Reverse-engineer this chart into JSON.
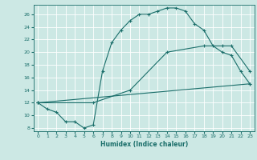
{
  "xlabel": "Humidex (Indice chaleur)",
  "bg_color": "#cce8e4",
  "line_color": "#1a6e6a",
  "grid_color": "#ffffff",
  "xlim": [
    -0.5,
    23.5
  ],
  "ylim": [
    7.5,
    27.5
  ],
  "xticks": [
    0,
    1,
    2,
    3,
    4,
    5,
    6,
    7,
    8,
    9,
    10,
    11,
    12,
    13,
    14,
    15,
    16,
    17,
    18,
    19,
    20,
    21,
    22,
    23
  ],
  "yticks": [
    8,
    10,
    12,
    14,
    16,
    18,
    20,
    22,
    24,
    26
  ],
  "series1_x": [
    0,
    1,
    2,
    3,
    4,
    5,
    6,
    7,
    8,
    9,
    10,
    11,
    12,
    13,
    14,
    15,
    16,
    17,
    18,
    19,
    20,
    21,
    22,
    23
  ],
  "series1_y": [
    12,
    11,
    10.5,
    9,
    9,
    8,
    8.5,
    17,
    21.5,
    23.5,
    25,
    26,
    26,
    26.5,
    27,
    27,
    26.5,
    24.5,
    23.5,
    21,
    20,
    19.5,
    17,
    15
  ],
  "series2_x": [
    0,
    23
  ],
  "series2_y": [
    12,
    15
  ],
  "series3_x": [
    0,
    6,
    10,
    14,
    18,
    20,
    21,
    23
  ],
  "series3_y": [
    12,
    12,
    14,
    20,
    21,
    21,
    21,
    17
  ]
}
